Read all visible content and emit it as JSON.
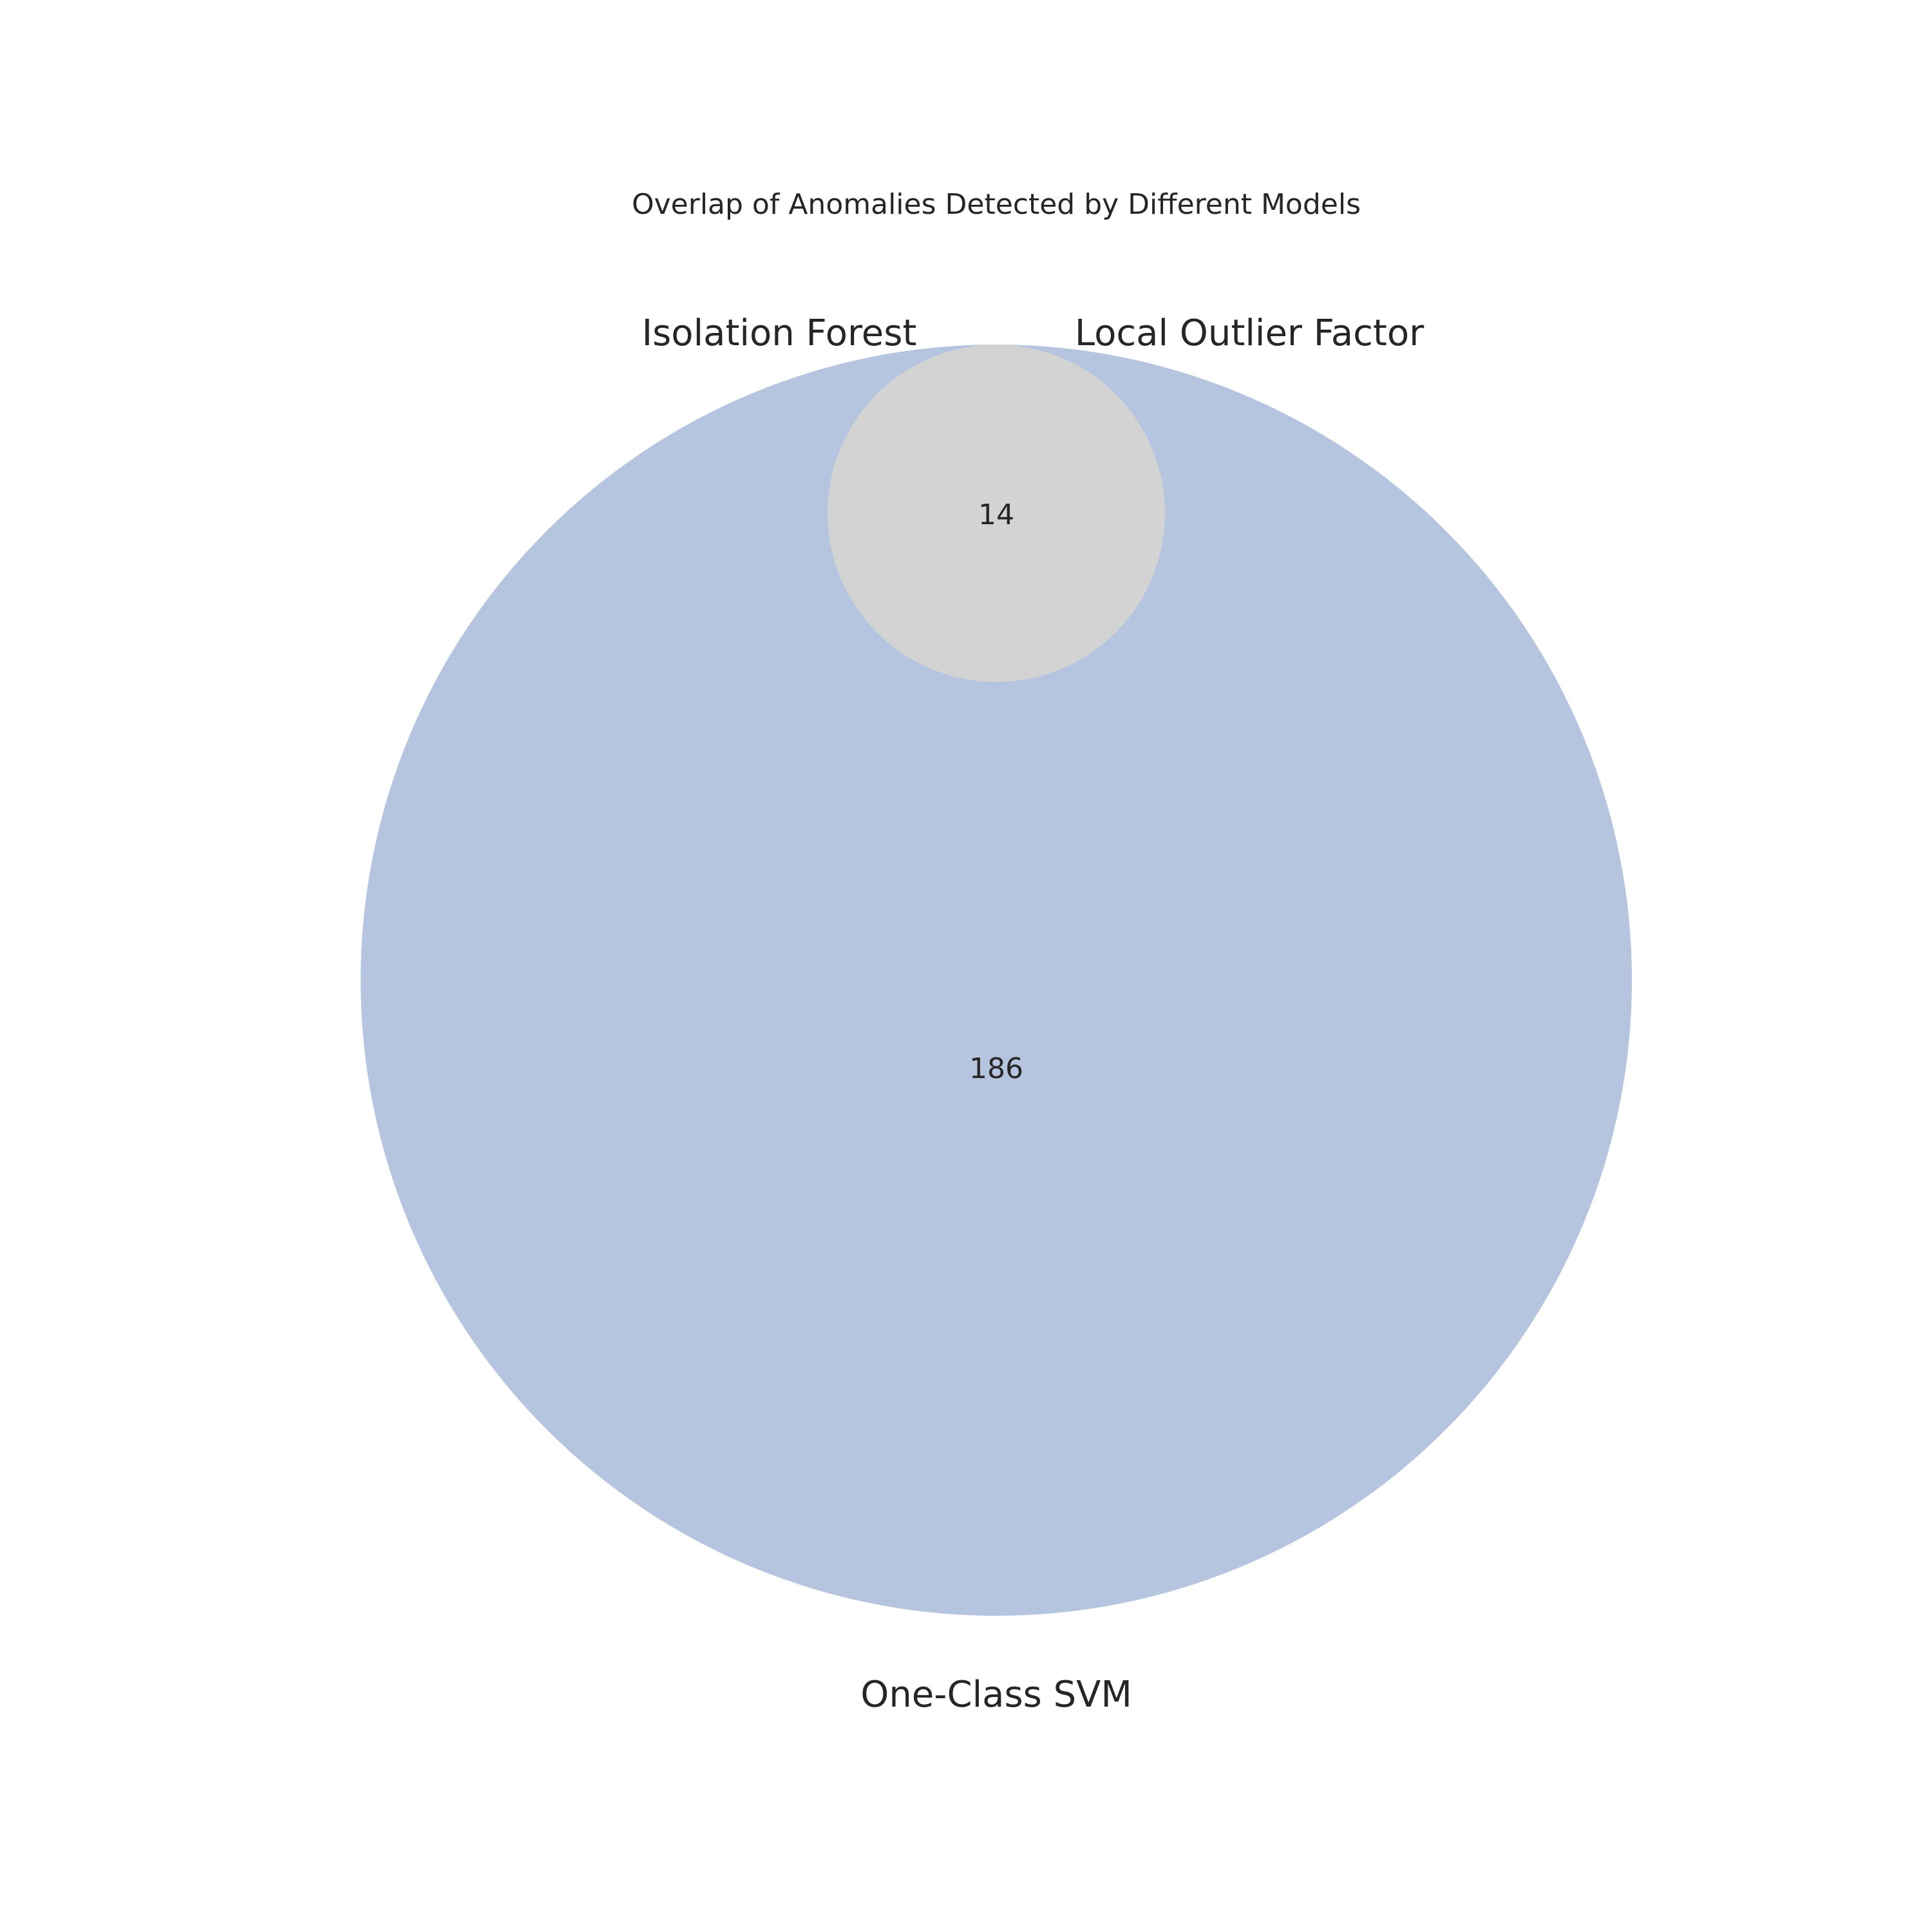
{
  "chart_data": {
    "type": "venn",
    "title": "Overlap of Anomalies Detected by Different Models",
    "sets": [
      {
        "name": "Isolation Forest"
      },
      {
        "name": "Local Outlier Factor"
      },
      {
        "name": "One-Class SVM"
      }
    ],
    "regions": [
      {
        "sets": [
          "Isolation Forest",
          "Local Outlier Factor",
          "One-Class SVM"
        ],
        "count": 14
      },
      {
        "sets": [
          "One-Class SVM"
        ],
        "count": 186
      }
    ],
    "colors": {
      "one_class_svm": "#b6c5df",
      "overlap": "#d3d3d3"
    }
  }
}
